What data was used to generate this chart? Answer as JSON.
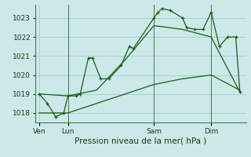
{
  "background_color": "#cce8e8",
  "grid_color": "#aacccc",
  "line_color": "#1a5c1a",
  "xlabel": "Pression niveau de la mer( hPa )",
  "ylim": [
    1017.5,
    1023.7
  ],
  "yticks": [
    1018,
    1019,
    1020,
    1021,
    1022,
    1023
  ],
  "xtick_labels": [
    "Ven",
    "Lun",
    "Sam",
    "Dim"
  ],
  "xtick_positions": [
    0,
    14,
    56,
    84
  ],
  "vline_positions": [
    14,
    56,
    84
  ],
  "series1_x": [
    0,
    4,
    8,
    12,
    14,
    18,
    20,
    24,
    26,
    30,
    34,
    40,
    44,
    46,
    56,
    58,
    60,
    64,
    70,
    72,
    76,
    80,
    84,
    88,
    92,
    96,
    98
  ],
  "series1_y": [
    1019.0,
    1018.5,
    1017.8,
    1018.0,
    1018.9,
    1018.9,
    1019.0,
    1020.9,
    1020.9,
    1019.8,
    1019.8,
    1020.5,
    1021.5,
    1021.4,
    1023.0,
    1023.3,
    1023.5,
    1023.4,
    1023.0,
    1022.5,
    1022.4,
    1022.4,
    1023.3,
    1021.5,
    1022.0,
    1022.0,
    1019.1
  ],
  "series2_x": [
    0,
    14,
    28,
    42,
    56,
    70,
    84,
    98
  ],
  "series2_y": [
    1018.0,
    1018.0,
    1018.5,
    1019.0,
    1019.5,
    1019.8,
    1020.0,
    1019.2
  ],
  "series3_x": [
    0,
    14,
    28,
    42,
    56,
    70,
    84,
    98
  ],
  "series3_y": [
    1019.0,
    1018.9,
    1019.2,
    1020.8,
    1022.6,
    1022.4,
    1022.0,
    1019.1
  ]
}
